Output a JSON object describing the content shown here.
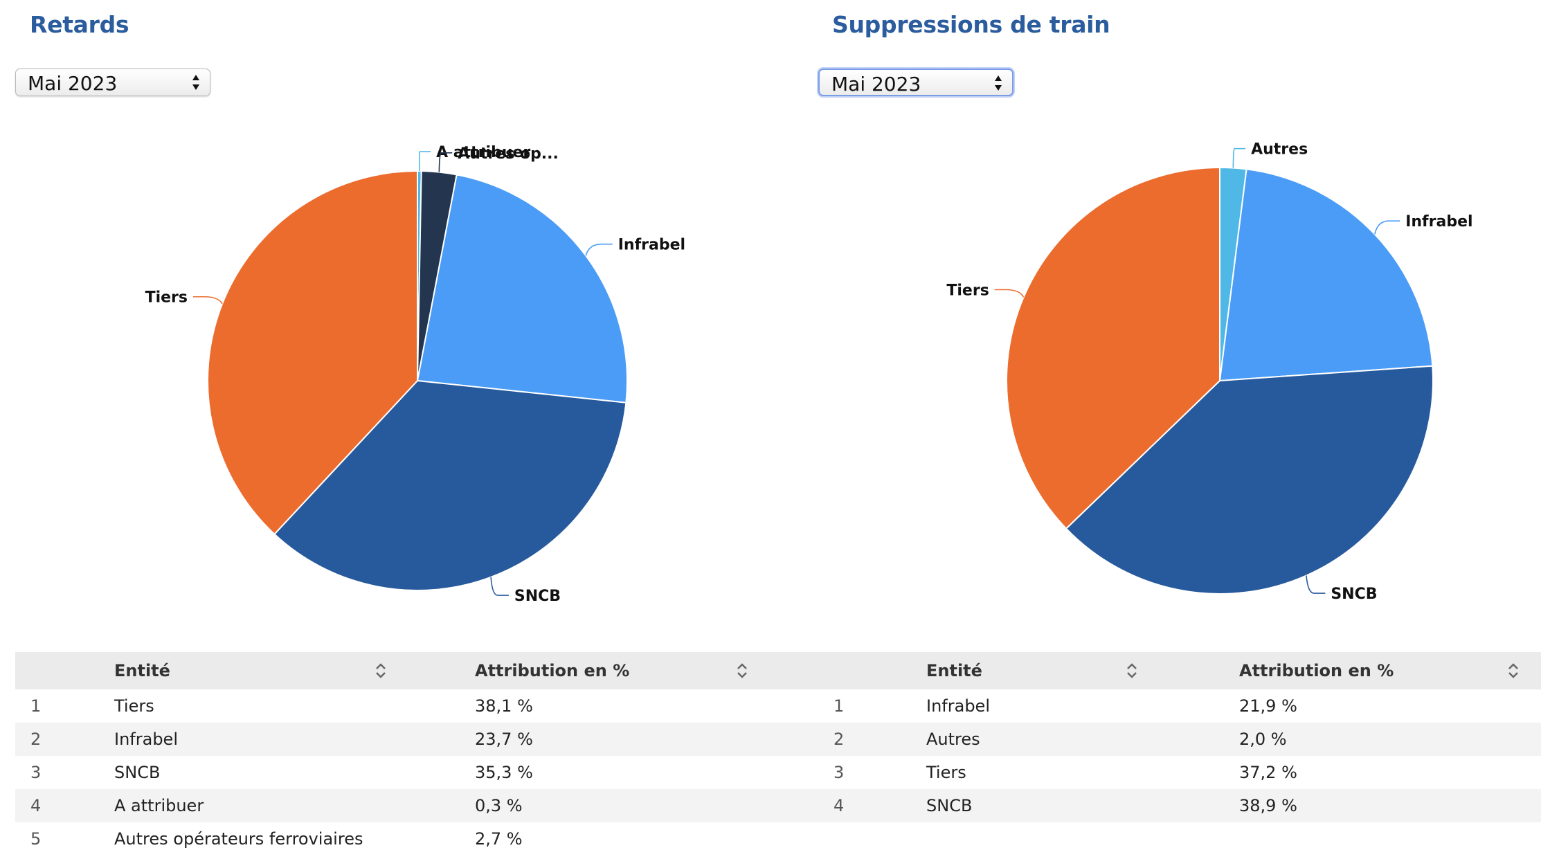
{
  "delays": {
    "title": "Retards",
    "select_value": "Mai 2023",
    "chart_data": {
      "type": "pie",
      "slices": [
        {
          "name": "A attribuer",
          "label": "A attribuer",
          "value": 0.3,
          "color": "#50b8e6"
        },
        {
          "name": "Autres opérateurs ferroviaires",
          "label": "Autres op...",
          "value": 2.7,
          "color": "#24364f"
        },
        {
          "name": "Infrabel",
          "label": "Infrabel",
          "value": 23.7,
          "color": "#4a9cf6"
        },
        {
          "name": "SNCB",
          "label": "SNCB",
          "value": 35.3,
          "color": "#275a9c"
        },
        {
          "name": "Tiers",
          "label": "Tiers",
          "value": 38.1,
          "color": "#ec6c2e"
        }
      ]
    },
    "table": {
      "headers": [
        "Entité",
        "Attribution en %"
      ],
      "rows": [
        {
          "index": "1",
          "entity": "Tiers",
          "pct": "38,1 %"
        },
        {
          "index": "2",
          "entity": "Infrabel",
          "pct": "23,7 %"
        },
        {
          "index": "3",
          "entity": "SNCB",
          "pct": "35,3 %"
        },
        {
          "index": "4",
          "entity": "A attribuer",
          "pct": "0,3 %"
        },
        {
          "index": "5",
          "entity": "Autres opérateurs ferroviaires",
          "pct": "2,7 %"
        }
      ]
    }
  },
  "cancellations": {
    "title": "Suppressions de train",
    "select_value": "Mai 2023",
    "chart_data": {
      "type": "pie",
      "slices": [
        {
          "name": "Autres",
          "label": "Autres",
          "value": 2.0,
          "color": "#50b8e6"
        },
        {
          "name": "Infrabel",
          "label": "Infrabel",
          "value": 21.9,
          "color": "#4a9cf6"
        },
        {
          "name": "SNCB",
          "label": "SNCB",
          "value": 38.9,
          "color": "#275a9c"
        },
        {
          "name": "Tiers",
          "label": "Tiers",
          "value": 37.2,
          "color": "#ec6c2e"
        }
      ]
    },
    "table": {
      "headers": [
        "Entité",
        "Attribution en %"
      ],
      "rows": [
        {
          "index": "1",
          "entity": "Infrabel",
          "pct": "21,9 %"
        },
        {
          "index": "2",
          "entity": "Autres",
          "pct": "2,0 %"
        },
        {
          "index": "3",
          "entity": "Tiers",
          "pct": "37,2 %"
        },
        {
          "index": "4",
          "entity": "SNCB",
          "pct": "38,9 %"
        }
      ]
    }
  }
}
